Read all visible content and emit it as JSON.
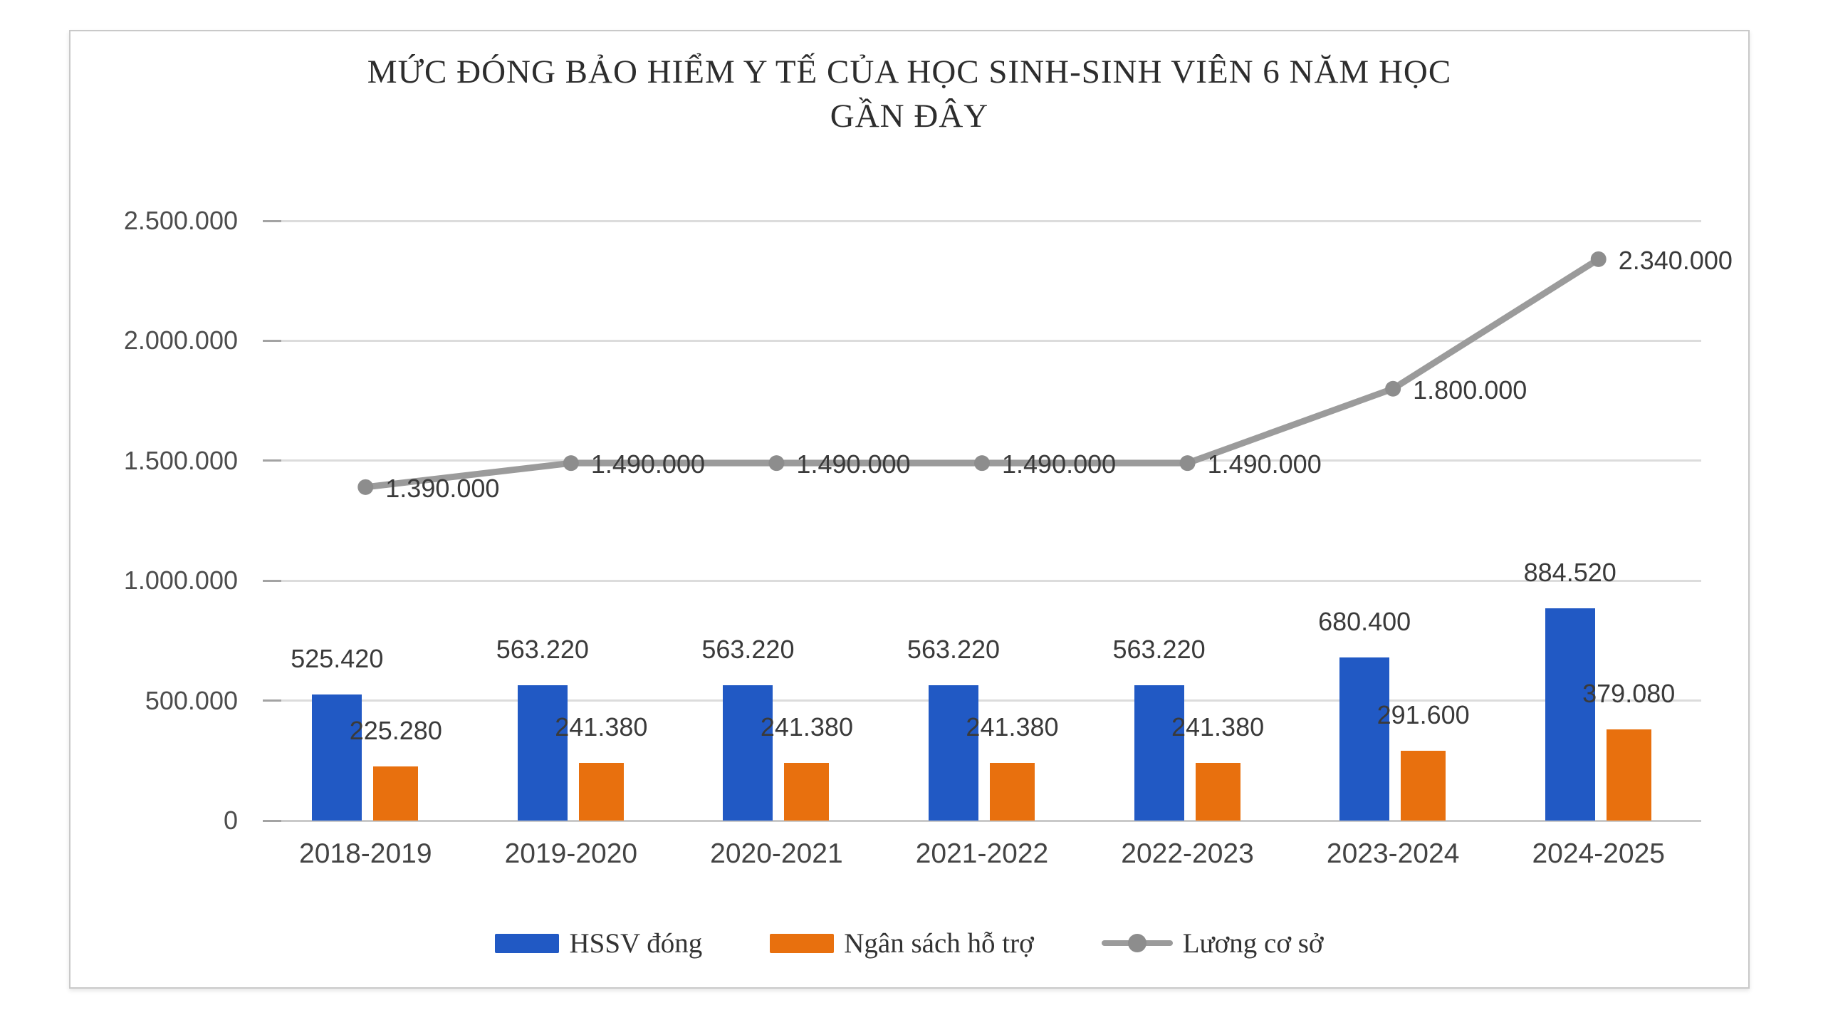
{
  "chart_data": {
    "type": "bar",
    "subtype": "combo-bar-line",
    "title": "MỨC ĐÓNG BẢO HIỂM Y TẾ CỦA HỌC SINH-SINH VIÊN 6 NĂM HỌC GẦN ĐÂY",
    "title_lines": [
      "MỨC ĐÓNG BẢO HIỂM Y TẾ CỦA HỌC SINH-SINH VIÊN 6 NĂM HỌC",
      "GẦN ĐÂY"
    ],
    "categories": [
      "2018-2019",
      "2019-2020",
      "2020-2021",
      "2021-2022",
      "2022-2023",
      "2023-2024",
      "2024-2025"
    ],
    "xlabel": "",
    "ylabel": "",
    "ylim": [
      0,
      2500000
    ],
    "grid": true,
    "legend_position": "bottom",
    "yticks": [
      {
        "value": 2500000,
        "label": "2.500.000"
      },
      {
        "value": 2000000,
        "label": "2.000.000"
      },
      {
        "value": 1500000,
        "label": "1.500.000"
      },
      {
        "value": 1000000,
        "label": "1.000.000"
      },
      {
        "value": 500000,
        "label": "500.000"
      },
      {
        "value": 0,
        "label": "0"
      }
    ],
    "series": [
      {
        "name": "HSSV đóng",
        "type": "bar",
        "color": "#2159c4",
        "values": [
          525420,
          563220,
          563220,
          563220,
          563220,
          680400,
          884520
        ],
        "labels": [
          "525.420",
          "563.220",
          "563.220",
          "563.220",
          "563.220",
          "680.400",
          "884.520"
        ]
      },
      {
        "name": "Ngân sách hỗ trợ",
        "type": "bar",
        "color": "#e8700e",
        "values": [
          225280,
          241380,
          241380,
          241380,
          241380,
          291600,
          379080
        ],
        "labels": [
          "225.280",
          "241.380",
          "241.380",
          "241.380",
          "241.380",
          "291.600",
          "379.080"
        ]
      },
      {
        "name": "Lương cơ sở",
        "type": "line",
        "color": "#9b9b9b",
        "marker_color": "#8d8d8d",
        "values": [
          1390000,
          1490000,
          1490000,
          1490000,
          1490000,
          1800000,
          2340000
        ],
        "labels": [
          "1.390.000",
          "1.490.000",
          "1.490.000",
          "1.490.000",
          "1.490.000",
          "1.800.000",
          "2.340.000"
        ]
      }
    ]
  }
}
